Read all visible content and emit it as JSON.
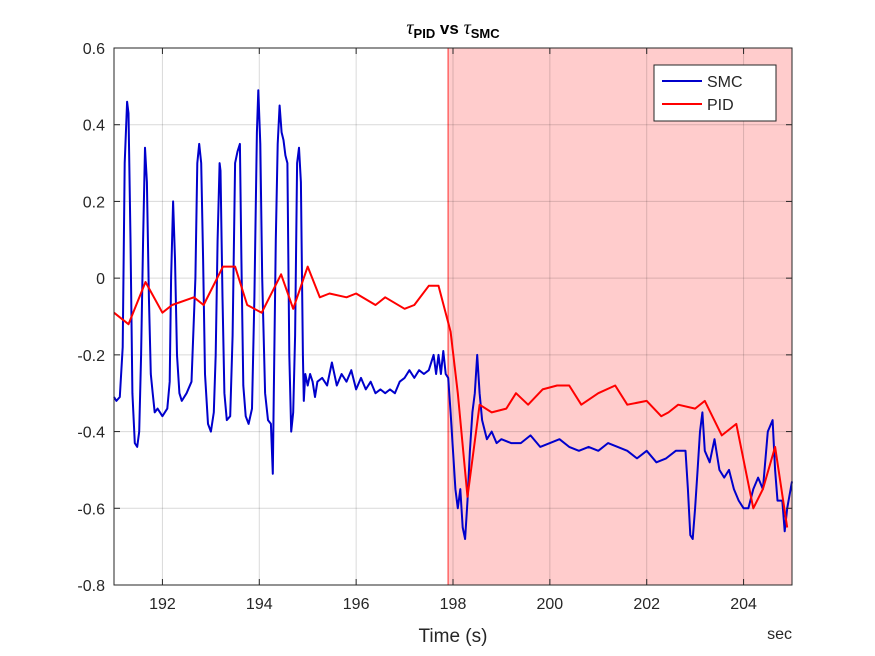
{
  "chart_data": {
    "type": "line",
    "title": {
      "symbol": "τ",
      "left_sub": "PID",
      "mid": " vs ",
      "right_sub": "SMC"
    },
    "xlabel": "Time (s)",
    "x_unit_label": "sec",
    "xlim": [
      191,
      205
    ],
    "ylim": [
      -0.8,
      0.6
    ],
    "xticks": [
      192,
      194,
      196,
      198,
      200,
      202,
      204
    ],
    "yticks": [
      0.6,
      0.4,
      0.2,
      0,
      -0.2,
      -0.4,
      -0.6,
      -0.8
    ],
    "xtick_labels": [
      "192",
      "194",
      "196",
      "198",
      "200",
      "202",
      "204"
    ],
    "ytick_labels": [
      "0.6",
      "0.4",
      "0.2",
      "0",
      "-0.2",
      "-0.4",
      "-0.6",
      "-0.8"
    ],
    "grid": true,
    "legend_position": "top-right",
    "shaded_region": {
      "x_start": 197.9,
      "x_end": 205,
      "color": "#ffcccc"
    },
    "series": [
      {
        "name": "SMC",
        "color": "#0000cc",
        "points": [
          [
            191.0,
            -0.31
          ],
          [
            191.05,
            -0.32
          ],
          [
            191.12,
            -0.31
          ],
          [
            191.18,
            -0.18
          ],
          [
            191.22,
            0.3
          ],
          [
            191.27,
            0.46
          ],
          [
            191.3,
            0.43
          ],
          [
            191.34,
            0.1
          ],
          [
            191.38,
            -0.3
          ],
          [
            191.43,
            -0.43
          ],
          [
            191.48,
            -0.44
          ],
          [
            191.52,
            -0.4
          ],
          [
            191.56,
            -0.2
          ],
          [
            191.6,
            0.1
          ],
          [
            191.64,
            0.34
          ],
          [
            191.68,
            0.25
          ],
          [
            191.72,
            -0.05
          ],
          [
            191.76,
            -0.25
          ],
          [
            191.8,
            -0.3
          ],
          [
            191.84,
            -0.35
          ],
          [
            191.9,
            -0.34
          ],
          [
            192.0,
            -0.36
          ],
          [
            192.1,
            -0.34
          ],
          [
            192.15,
            -0.27
          ],
          [
            192.18,
            0.0
          ],
          [
            192.22,
            0.2
          ],
          [
            192.26,
            0.05
          ],
          [
            192.3,
            -0.2
          ],
          [
            192.35,
            -0.3
          ],
          [
            192.4,
            -0.32
          ],
          [
            192.5,
            -0.3
          ],
          [
            192.6,
            -0.27
          ],
          [
            192.68,
            0.0
          ],
          [
            192.72,
            0.3
          ],
          [
            192.76,
            0.35
          ],
          [
            192.8,
            0.3
          ],
          [
            192.84,
            0.05
          ],
          [
            192.88,
            -0.25
          ],
          [
            192.94,
            -0.38
          ],
          [
            193.0,
            -0.4
          ],
          [
            193.06,
            -0.35
          ],
          [
            193.1,
            -0.2
          ],
          [
            193.14,
            0.1
          ],
          [
            193.18,
            0.3
          ],
          [
            193.2,
            0.28
          ],
          [
            193.24,
            -0.05
          ],
          [
            193.28,
            -0.3
          ],
          [
            193.33,
            -0.37
          ],
          [
            193.4,
            -0.36
          ],
          [
            193.45,
            -0.15
          ],
          [
            193.5,
            0.3
          ],
          [
            193.55,
            0.33
          ],
          [
            193.6,
            0.35
          ],
          [
            193.63,
            0.05
          ],
          [
            193.67,
            -0.28
          ],
          [
            193.72,
            -0.36
          ],
          [
            193.78,
            -0.38
          ],
          [
            193.85,
            -0.34
          ],
          [
            193.9,
            -0.05
          ],
          [
            193.95,
            0.38
          ],
          [
            193.98,
            0.49
          ],
          [
            194.02,
            0.35
          ],
          [
            194.06,
            0.0
          ],
          [
            194.12,
            -0.3
          ],
          [
            194.18,
            -0.37
          ],
          [
            194.24,
            -0.38
          ],
          [
            194.28,
            -0.51
          ],
          [
            194.3,
            -0.3
          ],
          [
            194.34,
            0.1
          ],
          [
            194.38,
            0.35
          ],
          [
            194.42,
            0.45
          ],
          [
            194.46,
            0.38
          ],
          [
            194.5,
            0.36
          ],
          [
            194.54,
            0.32
          ],
          [
            194.58,
            0.3
          ],
          [
            194.62,
            -0.2
          ],
          [
            194.66,
            -0.4
          ],
          [
            194.7,
            -0.35
          ],
          [
            194.74,
            -0.15
          ],
          [
            194.78,
            0.3
          ],
          [
            194.82,
            0.34
          ],
          [
            194.86,
            0.25
          ],
          [
            194.9,
            -0.2
          ],
          [
            194.92,
            -0.32
          ],
          [
            194.95,
            -0.25
          ],
          [
            195.0,
            -0.28
          ],
          [
            195.05,
            -0.25
          ],
          [
            195.1,
            -0.27
          ],
          [
            195.15,
            -0.31
          ],
          [
            195.2,
            -0.27
          ],
          [
            195.3,
            -0.26
          ],
          [
            195.4,
            -0.28
          ],
          [
            195.5,
            -0.22
          ],
          [
            195.6,
            -0.28
          ],
          [
            195.7,
            -0.25
          ],
          [
            195.8,
            -0.27
          ],
          [
            195.9,
            -0.24
          ],
          [
            196.0,
            -0.29
          ],
          [
            196.1,
            -0.26
          ],
          [
            196.2,
            -0.29
          ],
          [
            196.3,
            -0.27
          ],
          [
            196.4,
            -0.3
          ],
          [
            196.5,
            -0.29
          ],
          [
            196.6,
            -0.3
          ],
          [
            196.7,
            -0.29
          ],
          [
            196.8,
            -0.3
          ],
          [
            196.9,
            -0.27
          ],
          [
            197.0,
            -0.26
          ],
          [
            197.1,
            -0.24
          ],
          [
            197.2,
            -0.26
          ],
          [
            197.3,
            -0.24
          ],
          [
            197.4,
            -0.25
          ],
          [
            197.5,
            -0.24
          ],
          [
            197.6,
            -0.2
          ],
          [
            197.65,
            -0.25
          ],
          [
            197.7,
            -0.2
          ],
          [
            197.75,
            -0.25
          ],
          [
            197.8,
            -0.19
          ],
          [
            197.85,
            -0.25
          ],
          [
            197.9,
            -0.26
          ],
          [
            197.95,
            -0.35
          ],
          [
            198.0,
            -0.45
          ],
          [
            198.05,
            -0.55
          ],
          [
            198.1,
            -0.6
          ],
          [
            198.15,
            -0.55
          ],
          [
            198.2,
            -0.65
          ],
          [
            198.25,
            -0.68
          ],
          [
            198.3,
            -0.58
          ],
          [
            198.35,
            -0.45
          ],
          [
            198.4,
            -0.35
          ],
          [
            198.45,
            -0.3
          ],
          [
            198.5,
            -0.2
          ],
          [
            198.55,
            -0.3
          ],
          [
            198.6,
            -0.37
          ],
          [
            198.7,
            -0.42
          ],
          [
            198.8,
            -0.4
          ],
          [
            198.9,
            -0.43
          ],
          [
            199.0,
            -0.42
          ],
          [
            199.2,
            -0.43
          ],
          [
            199.4,
            -0.43
          ],
          [
            199.6,
            -0.41
          ],
          [
            199.8,
            -0.44
          ],
          [
            200.0,
            -0.43
          ],
          [
            200.2,
            -0.42
          ],
          [
            200.4,
            -0.44
          ],
          [
            200.6,
            -0.45
          ],
          [
            200.8,
            -0.44
          ],
          [
            201.0,
            -0.45
          ],
          [
            201.2,
            -0.43
          ],
          [
            201.4,
            -0.44
          ],
          [
            201.6,
            -0.45
          ],
          [
            201.8,
            -0.47
          ],
          [
            202.0,
            -0.45
          ],
          [
            202.2,
            -0.48
          ],
          [
            202.4,
            -0.47
          ],
          [
            202.6,
            -0.45
          ],
          [
            202.8,
            -0.45
          ],
          [
            202.85,
            -0.55
          ],
          [
            202.9,
            -0.67
          ],
          [
            202.95,
            -0.68
          ],
          [
            203.0,
            -0.6
          ],
          [
            203.05,
            -0.5
          ],
          [
            203.1,
            -0.4
          ],
          [
            203.15,
            -0.35
          ],
          [
            203.2,
            -0.45
          ],
          [
            203.3,
            -0.48
          ],
          [
            203.4,
            -0.42
          ],
          [
            203.5,
            -0.5
          ],
          [
            203.6,
            -0.52
          ],
          [
            203.7,
            -0.5
          ],
          [
            203.8,
            -0.55
          ],
          [
            203.9,
            -0.58
          ],
          [
            204.0,
            -0.6
          ],
          [
            204.1,
            -0.6
          ],
          [
            204.2,
            -0.55
          ],
          [
            204.3,
            -0.52
          ],
          [
            204.4,
            -0.55
          ],
          [
            204.5,
            -0.4
          ],
          [
            204.6,
            -0.37
          ],
          [
            204.65,
            -0.5
          ],
          [
            204.7,
            -0.58
          ],
          [
            204.8,
            -0.58
          ],
          [
            204.85,
            -0.66
          ],
          [
            204.9,
            -0.6
          ],
          [
            205.0,
            -0.53
          ]
        ]
      },
      {
        "name": "PID",
        "color": "#ff0000",
        "points": [
          [
            191.0,
            -0.09
          ],
          [
            191.3,
            -0.12
          ],
          [
            191.65,
            -0.01
          ],
          [
            192.0,
            -0.09
          ],
          [
            192.2,
            -0.07
          ],
          [
            192.65,
            -0.05
          ],
          [
            192.85,
            -0.07
          ],
          [
            193.25,
            0.03
          ],
          [
            193.5,
            0.03
          ],
          [
            193.75,
            -0.07
          ],
          [
            194.05,
            -0.09
          ],
          [
            194.45,
            0.01
          ],
          [
            194.7,
            -0.08
          ],
          [
            195.0,
            0.03
          ],
          [
            195.25,
            -0.05
          ],
          [
            195.45,
            -0.04
          ],
          [
            195.8,
            -0.05
          ],
          [
            196.0,
            -0.04
          ],
          [
            196.4,
            -0.07
          ],
          [
            196.6,
            -0.05
          ],
          [
            197.0,
            -0.08
          ],
          [
            197.2,
            -0.07
          ],
          [
            197.5,
            -0.02
          ],
          [
            197.7,
            -0.02
          ],
          [
            197.95,
            -0.14
          ],
          [
            198.1,
            -0.3
          ],
          [
            198.3,
            -0.57
          ],
          [
            198.55,
            -0.33
          ],
          [
            198.8,
            -0.35
          ],
          [
            199.1,
            -0.34
          ],
          [
            199.3,
            -0.3
          ],
          [
            199.55,
            -0.33
          ],
          [
            199.85,
            -0.29
          ],
          [
            200.15,
            -0.28
          ],
          [
            200.4,
            -0.28
          ],
          [
            200.65,
            -0.33
          ],
          [
            201.0,
            -0.3
          ],
          [
            201.35,
            -0.28
          ],
          [
            201.6,
            -0.33
          ],
          [
            202.0,
            -0.32
          ],
          [
            202.3,
            -0.36
          ],
          [
            202.45,
            -0.35
          ],
          [
            202.65,
            -0.33
          ],
          [
            203.0,
            -0.34
          ],
          [
            203.2,
            -0.32
          ],
          [
            203.55,
            -0.41
          ],
          [
            203.85,
            -0.38
          ],
          [
            204.2,
            -0.6
          ],
          [
            204.4,
            -0.55
          ],
          [
            204.65,
            -0.44
          ],
          [
            204.9,
            -0.65
          ]
        ]
      }
    ]
  }
}
